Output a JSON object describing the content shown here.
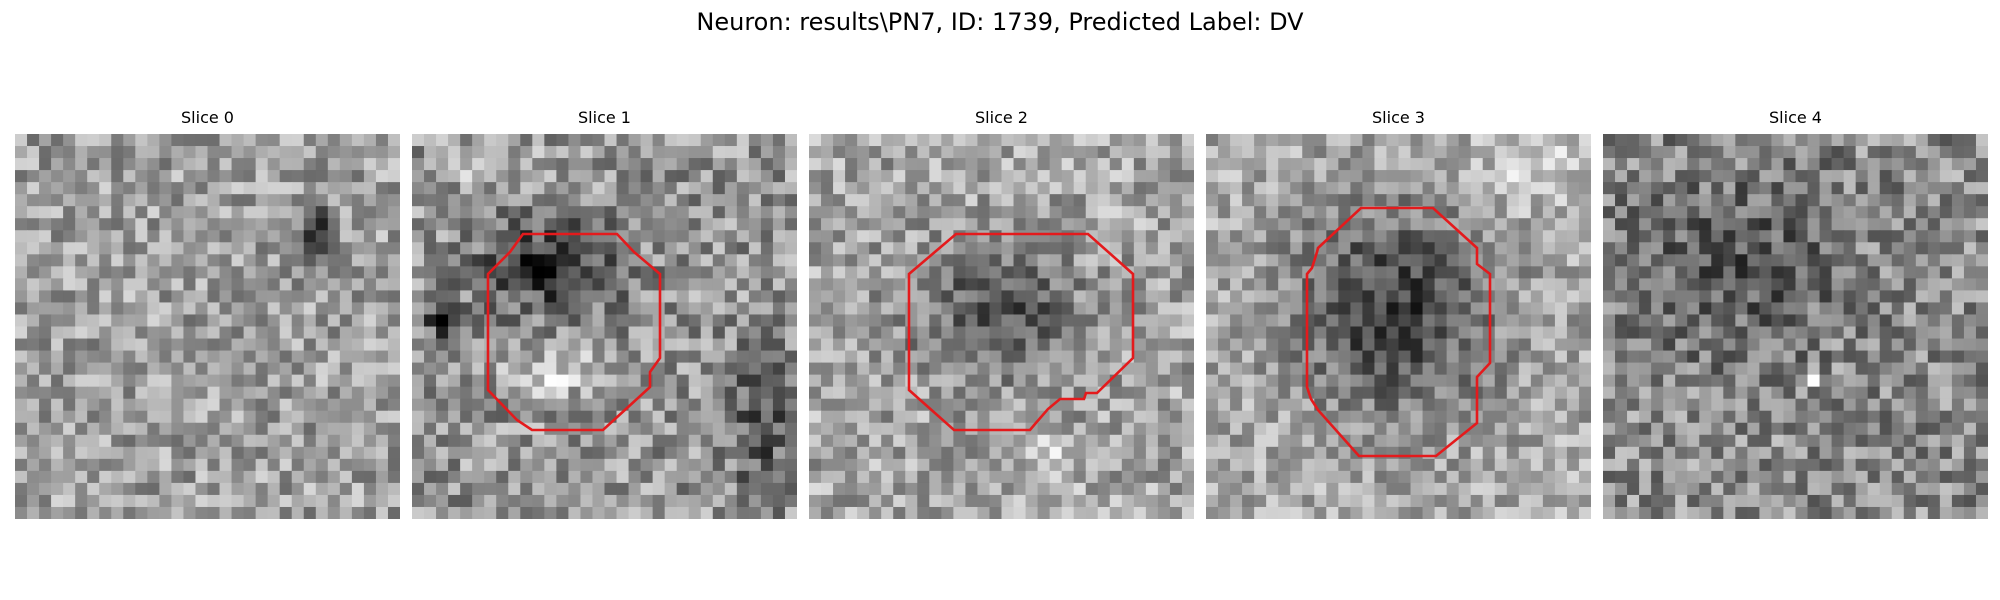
{
  "figure": {
    "title": "Neuron: results\\PN7, ID: 1739, Predicted Label: DV"
  },
  "panels": [
    {
      "title": "Slice 0",
      "has_contour": false
    },
    {
      "title": "Slice 1",
      "has_contour": true
    },
    {
      "title": "Slice 2",
      "has_contour": true
    },
    {
      "title": "Slice 3",
      "has_contour": true
    },
    {
      "title": "Slice 4",
      "has_contour": false
    }
  ],
  "colors": {
    "contour": "#e41a1c",
    "background": "#ffffff"
  }
}
